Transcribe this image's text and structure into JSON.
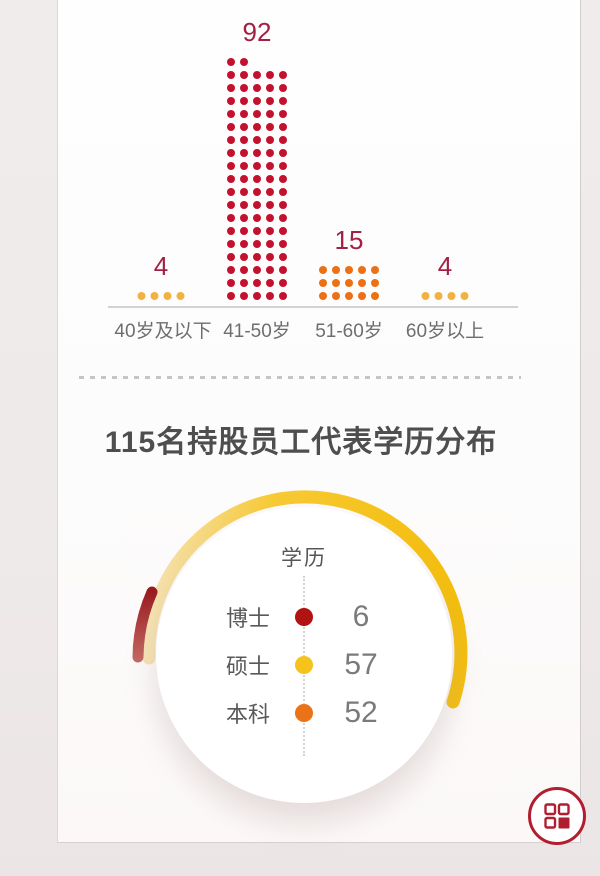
{
  "edu_section": {
    "title": "115名持股员工代表学历分布",
    "legend_title": "学历"
  },
  "fab": {
    "icon": "grid-menu-icon"
  },
  "colors": {
    "count_label": "#a32045",
    "axis_line": "#d2d2d2",
    "axis_label": "#6e6e6e",
    "fab_ring": "#b01f30"
  },
  "chart_data": [
    {
      "type": "bar",
      "subtype": "dot-matrix-pictogram",
      "title": "",
      "categories": [
        "40岁及以下",
        "41-50岁",
        "51-60岁",
        "60岁以上"
      ],
      "values": [
        4,
        92,
        15,
        4
      ],
      "colors": [
        "#f2b242",
        "#c4122e",
        "#ec7014",
        "#f2b242"
      ],
      "value_label_color": "#a32045",
      "dots_per_row": 5,
      "legend_position": "none",
      "grid": false
    },
    {
      "type": "pie",
      "subtype": "arc-gauge-donut",
      "title": "115名持股员工代表学历分布",
      "legend_title": "学历",
      "categories": [
        "博士",
        "硕士",
        "本科"
      ],
      "values": [
        6,
        57,
        52
      ],
      "colors": [
        "#b11212",
        "#f6c31d",
        "#ec7217"
      ],
      "arc_gradients": {
        "博士": [
          "#9a1b1f",
          "#c2655f"
        ],
        "硕士": [
          "#f6e3b2",
          "#f7ca35",
          "#f5be0a"
        ],
        "本科": [
          "#f0c4a4",
          "#ef9348",
          "#ea6410"
        ]
      },
      "total": 115,
      "legend_position": "center"
    }
  ]
}
